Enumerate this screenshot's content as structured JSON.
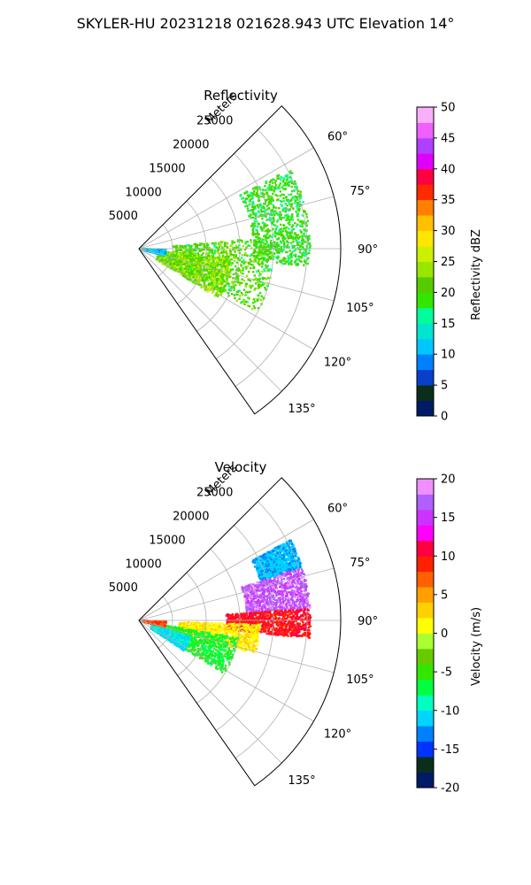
{
  "figure": {
    "suptitle": "SKYLER-HU  20231218  021628.943 UTC Elevation 14°"
  },
  "chart_data": [
    {
      "type": "heatmap",
      "projection": "polar-sector",
      "title": "Reflectivity",
      "radial_axis_label": "Meters",
      "range_ticks": [
        5000,
        10000,
        15000,
        20000,
        25000
      ],
      "range_max": 30000,
      "azimuth_limits_deg": [
        45,
        145
      ],
      "azimuth_ticks_deg": [
        "60°",
        "75°",
        "90°",
        "105°",
        "120°",
        "135°"
      ],
      "grid": true,
      "colorbar": {
        "label": "Reflectivity dBZ",
        "min": 0,
        "max": 50,
        "ticks": [
          0,
          5,
          10,
          15,
          20,
          25,
          30,
          35,
          40,
          45,
          50
        ]
      },
      "echo_regions": [
        {
          "az_range_deg": [
            62,
            96
          ],
          "range_m": [
            17000,
            25500
          ],
          "value_range": [
            16,
            22
          ]
        },
        {
          "az_range_deg": [
            85,
            118
          ],
          "range_m": [
            5000,
            20000
          ],
          "value_range": [
            17,
            24
          ]
        },
        {
          "az_range_deg": [
            96,
            122
          ],
          "range_m": [
            3000,
            14000
          ],
          "value_range": [
            18,
            27
          ]
        },
        {
          "az_range_deg": [
            92,
            105
          ],
          "range_m": [
            300,
            4000
          ],
          "value_range": [
            9,
            14
          ]
        }
      ]
    },
    {
      "type": "heatmap",
      "projection": "polar-sector",
      "title": "Velocity",
      "radial_axis_label": "Meters",
      "range_ticks": [
        5000,
        10000,
        15000,
        20000,
        25000
      ],
      "range_max": 30000,
      "azimuth_limits_deg": [
        45,
        145
      ],
      "azimuth_ticks_deg": [
        "60°",
        "75°",
        "90°",
        "105°",
        "120°",
        "135°"
      ],
      "grid": true,
      "colorbar": {
        "label": "Velocity (m/s)",
        "min": -20,
        "max": 20,
        "ticks": [
          -20,
          -15,
          -10,
          -5,
          0,
          5,
          10,
          15,
          20
        ]
      },
      "echo_regions": [
        {
          "az_range_deg": [
            62,
            72
          ],
          "range_m": [
            19000,
            25500
          ],
          "value_range": [
            -13,
            -10
          ]
        },
        {
          "az_range_deg": [
            72,
            86
          ],
          "range_m": [
            16000,
            25500
          ],
          "value_range": [
            14,
            19
          ]
        },
        {
          "az_range_deg": [
            86,
            96
          ],
          "range_m": [
            13000,
            25500
          ],
          "value_range": [
            8,
            12
          ]
        },
        {
          "az_range_deg": [
            92,
            106
          ],
          "range_m": [
            6000,
            18000
          ],
          "value_range": [
            0,
            4
          ]
        },
        {
          "az_range_deg": [
            100,
            122
          ],
          "range_m": [
            3000,
            15000
          ],
          "value_range": [
            -8,
            -5
          ]
        },
        {
          "az_range_deg": [
            108,
            124
          ],
          "range_m": [
            2000,
            8000
          ],
          "value_range": [
            -12,
            -9
          ]
        },
        {
          "az_range_deg": [
            92,
            104
          ],
          "range_m": [
            300,
            4000
          ],
          "value_range": [
            6,
            10
          ]
        }
      ]
    }
  ]
}
